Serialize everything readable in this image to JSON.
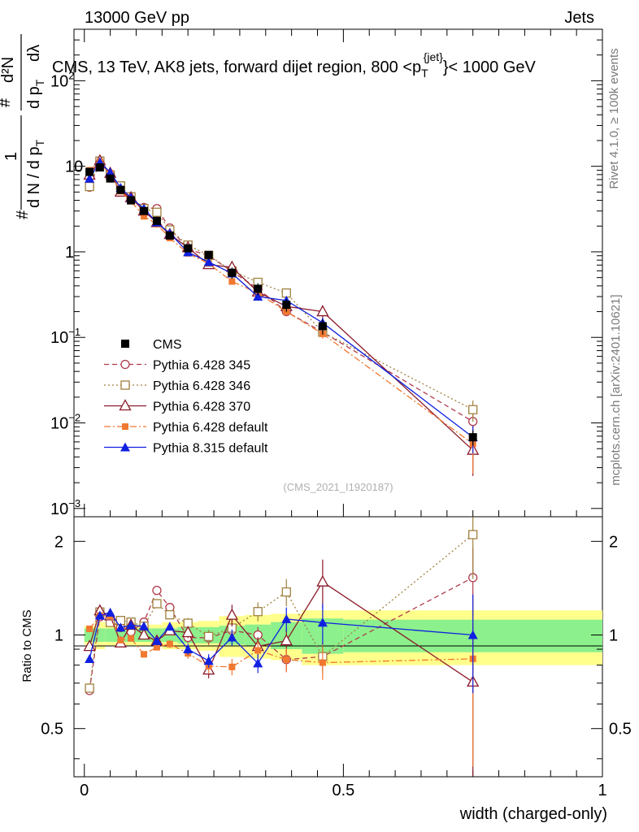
{
  "header": {
    "left": "13000 GeV pp",
    "right": "Jets",
    "title_main": "CMS, 13 TeV, AK8 jets, forward dijet region, 800 <p",
    "title_sup": "{jet}",
    "title_sub": "T",
    "title_tail": "}< 1000 GeV",
    "rivet": "Rivet 4.1.0, ≥ 100k events",
    "mcplots": "mcplots.cern.ch [arXiv:2401.10621]",
    "analysis": "(CMS_2021_I1920187)"
  },
  "axes": {
    "top_ylabel": {
      "hash": "#",
      "one": "1",
      "dN": "d N / d p",
      "dN_sub": "T",
      "num": "#",
      "d2N": "d²N",
      "dpt": "d p",
      "dpt_sub": "T",
      "dl": "dλ"
    },
    "ratio_ylabel": "Ratio to CMS",
    "xlabel": "width (charged-only)",
    "top_yticks": [
      {
        "base": "10",
        "exp": "−3"
      },
      {
        "base": "10",
        "exp": "−2"
      },
      {
        "base": "10",
        "exp": "−1"
      },
      {
        "base": "1",
        "exp": ""
      },
      {
        "base": "10",
        "exp": ""
      },
      {
        "base": "10",
        "exp": "2"
      }
    ],
    "ratio_yticks": [
      "0.5",
      "1",
      "2"
    ],
    "xticks": [
      "0",
      "0.5",
      "1"
    ]
  },
  "chart_data": {
    "type": "line",
    "x_range": [
      -0.02,
      1.0
    ],
    "y_range_main": [
      0.0008,
      400
    ],
    "y_range_ratio": [
      0.35,
      2.4
    ],
    "x_edges": [
      0,
      0.02,
      0.04,
      0.06,
      0.08,
      0.1,
      0.13,
      0.15,
      0.18,
      0.22,
      0.26,
      0.31,
      0.36,
      0.42,
      0.5,
      1.0
    ],
    "x": [
      0.01,
      0.03,
      0.05,
      0.07,
      0.09,
      0.115,
      0.14,
      0.165,
      0.2,
      0.24,
      0.285,
      0.335,
      0.39,
      0.46,
      0.75
    ],
    "data": {
      "name": "CMS",
      "values": [
        8.6,
        9.7,
        7.2,
        5.3,
        4.0,
        3.0,
        2.3,
        1.55,
        1.1,
        0.92,
        0.57,
        0.37,
        0.24,
        0.135,
        0.0068
      ],
      "syst_inner": [
        0.05,
        0.05,
        0.05,
        0.05,
        0.05,
        0.05,
        0.05,
        0.05,
        0.06,
        0.06,
        0.07,
        0.08,
        0.1,
        0.13,
        0.12
      ],
      "syst_outer": [
        0.07,
        0.1,
        0.08,
        0.08,
        0.08,
        0.08,
        0.08,
        0.1,
        0.1,
        0.11,
        0.15,
        0.16,
        0.17,
        0.2,
        0.2
      ]
    },
    "series": [
      {
        "name": "Pythia 6.428 345",
        "color": "#b03a4a",
        "marker": "circle-open",
        "dash": "6,4",
        "values": [
          5.7,
          11.1,
          8.0,
          5.6,
          4.1,
          3.3,
          3.2,
          1.9,
          1.08,
          0.9,
          0.59,
          0.37,
          0.2,
          0.115,
          0.0104
        ],
        "errors": [
          0.02,
          0.02,
          0.02,
          0.02,
          0.02,
          0.02,
          0.02,
          0.03,
          0.04,
          0.05,
          0.06,
          0.06,
          0.08,
          0.1,
          0.25
        ]
      },
      {
        "name": "Pythia 6.428 346",
        "color": "#a08040",
        "marker": "square-open",
        "dash": "2,3",
        "values": [
          5.8,
          11.5,
          7.9,
          5.9,
          4.4,
          3.2,
          2.9,
          1.8,
          1.2,
          0.91,
          0.6,
          0.44,
          0.33,
          0.115,
          0.0143
        ],
        "errors": [
          0.02,
          0.02,
          0.02,
          0.02,
          0.02,
          0.02,
          0.02,
          0.03,
          0.04,
          0.05,
          0.06,
          0.07,
          0.1,
          0.12,
          0.28
        ]
      },
      {
        "name": "Pythia 6.428 370",
        "color": "#8b1a2a",
        "marker": "triangle-open",
        "dash": "",
        "values": [
          7.9,
          11.6,
          8.3,
          5.0,
          4.3,
          3.0,
          2.2,
          1.6,
          1.12,
          0.71,
          0.66,
          0.34,
          0.23,
          0.2,
          0.0048
        ],
        "errors": [
          0.02,
          0.02,
          0.02,
          0.02,
          0.02,
          0.02,
          0.02,
          0.03,
          0.04,
          0.06,
          0.08,
          0.07,
          0.09,
          0.18,
          0.5
        ]
      },
      {
        "name": "Pythia 6.428 default",
        "color": "#f07830",
        "marker": "square-filled",
        "dash": "8,3,2,3",
        "values": [
          9.0,
          11.2,
          8.3,
          5.1,
          3.9,
          2.6,
          2.1,
          1.45,
          0.96,
          0.73,
          0.45,
          0.33,
          0.2,
          0.11,
          0.0057
        ],
        "errors": [
          0.02,
          0.02,
          0.02,
          0.02,
          0.02,
          0.02,
          0.02,
          0.03,
          0.04,
          0.05,
          0.06,
          0.07,
          0.09,
          0.12,
          0.55
        ]
      },
      {
        "name": "Pythia 8.315 default",
        "color": "#1020e0",
        "marker": "triangle-filled",
        "dash": "",
        "values": [
          7.2,
          11.2,
          8.5,
          5.6,
          4.3,
          3.2,
          2.2,
          1.65,
          0.99,
          0.76,
          0.56,
          0.3,
          0.27,
          0.148,
          0.0068
        ],
        "errors": [
          0.02,
          0.02,
          0.02,
          0.02,
          0.02,
          0.02,
          0.02,
          0.03,
          0.04,
          0.05,
          0.06,
          0.07,
          0.09,
          0.15,
          0.35
        ]
      }
    ]
  }
}
